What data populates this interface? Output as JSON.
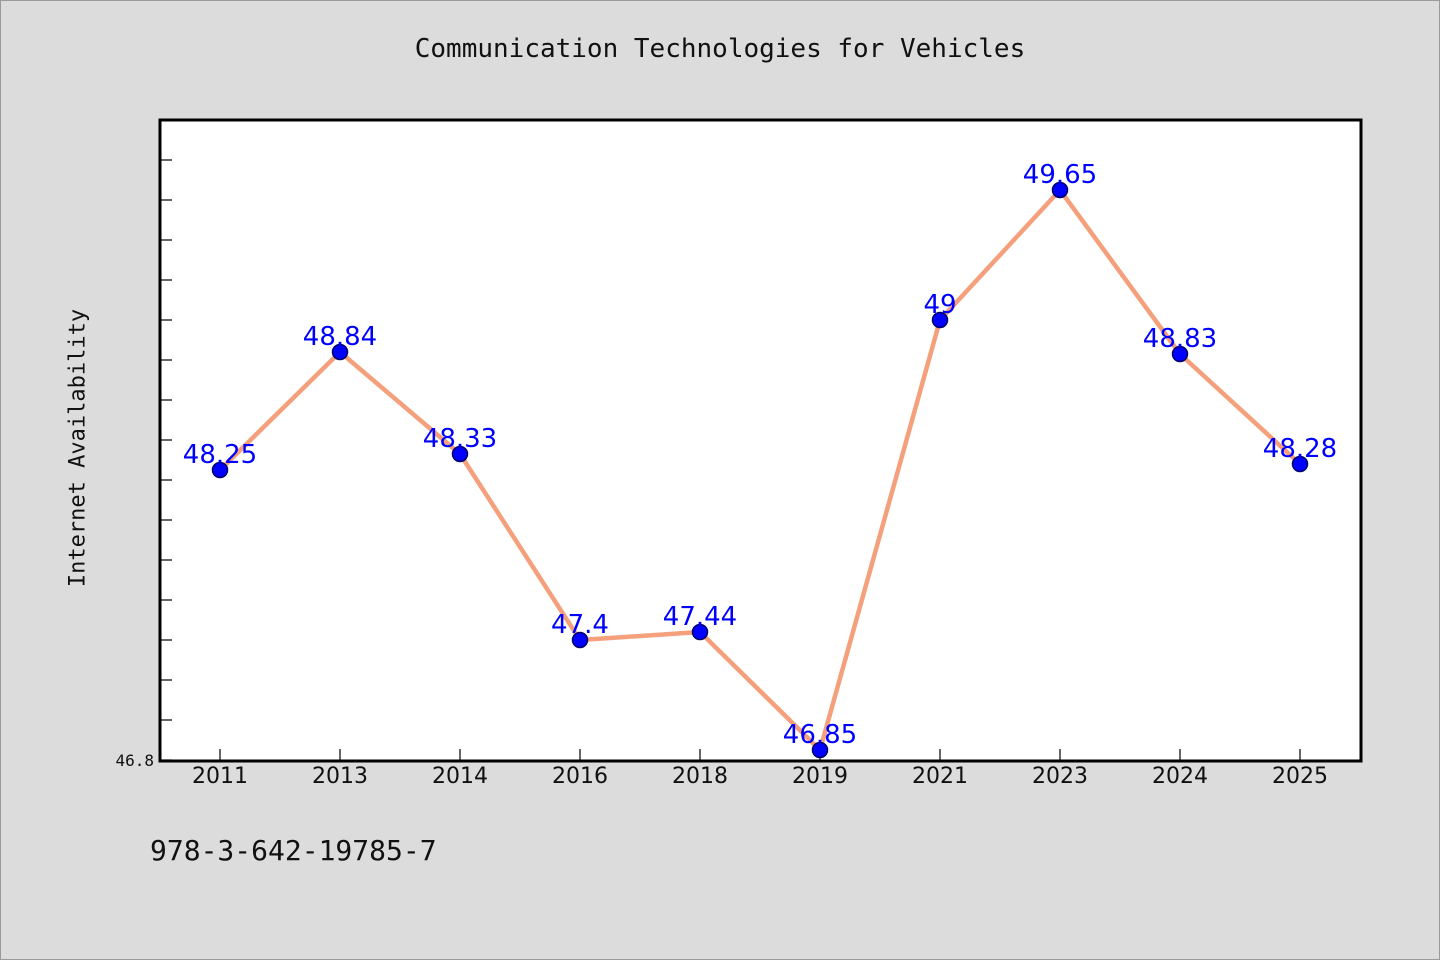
{
  "chart_data": {
    "type": "line",
    "title": "Communication Technologies for Vehicles",
    "xlabel": "",
    "ylabel": "Internet Availability",
    "categories": [
      "2011",
      "2013",
      "2014",
      "2016",
      "2018",
      "2019",
      "2021",
      "2023",
      "2024",
      "2025"
    ],
    "values": [
      48.25,
      48.84,
      48.33,
      47.4,
      47.44,
      46.85,
      49,
      49.65,
      48.83,
      48.28
    ],
    "data_labels": [
      "48.25",
      "48.84",
      "48.33",
      "47.4",
      "47.44",
      "46.85",
      "49",
      "49.65",
      "48.83",
      "48.28"
    ],
    "y_tick_labels": [
      "46.8"
    ],
    "ylim": [
      46.8,
      50.0
    ],
    "grid": false,
    "legend": "none",
    "colors": {
      "line": "#f4a07c",
      "marker": "#0000ff",
      "marker_edge": "#000066",
      "data_label": "#0000ff",
      "plot_background": "#ffffff",
      "page_background": "#dcdcdc"
    }
  },
  "footer_text": "978-3-642-19785-7"
}
